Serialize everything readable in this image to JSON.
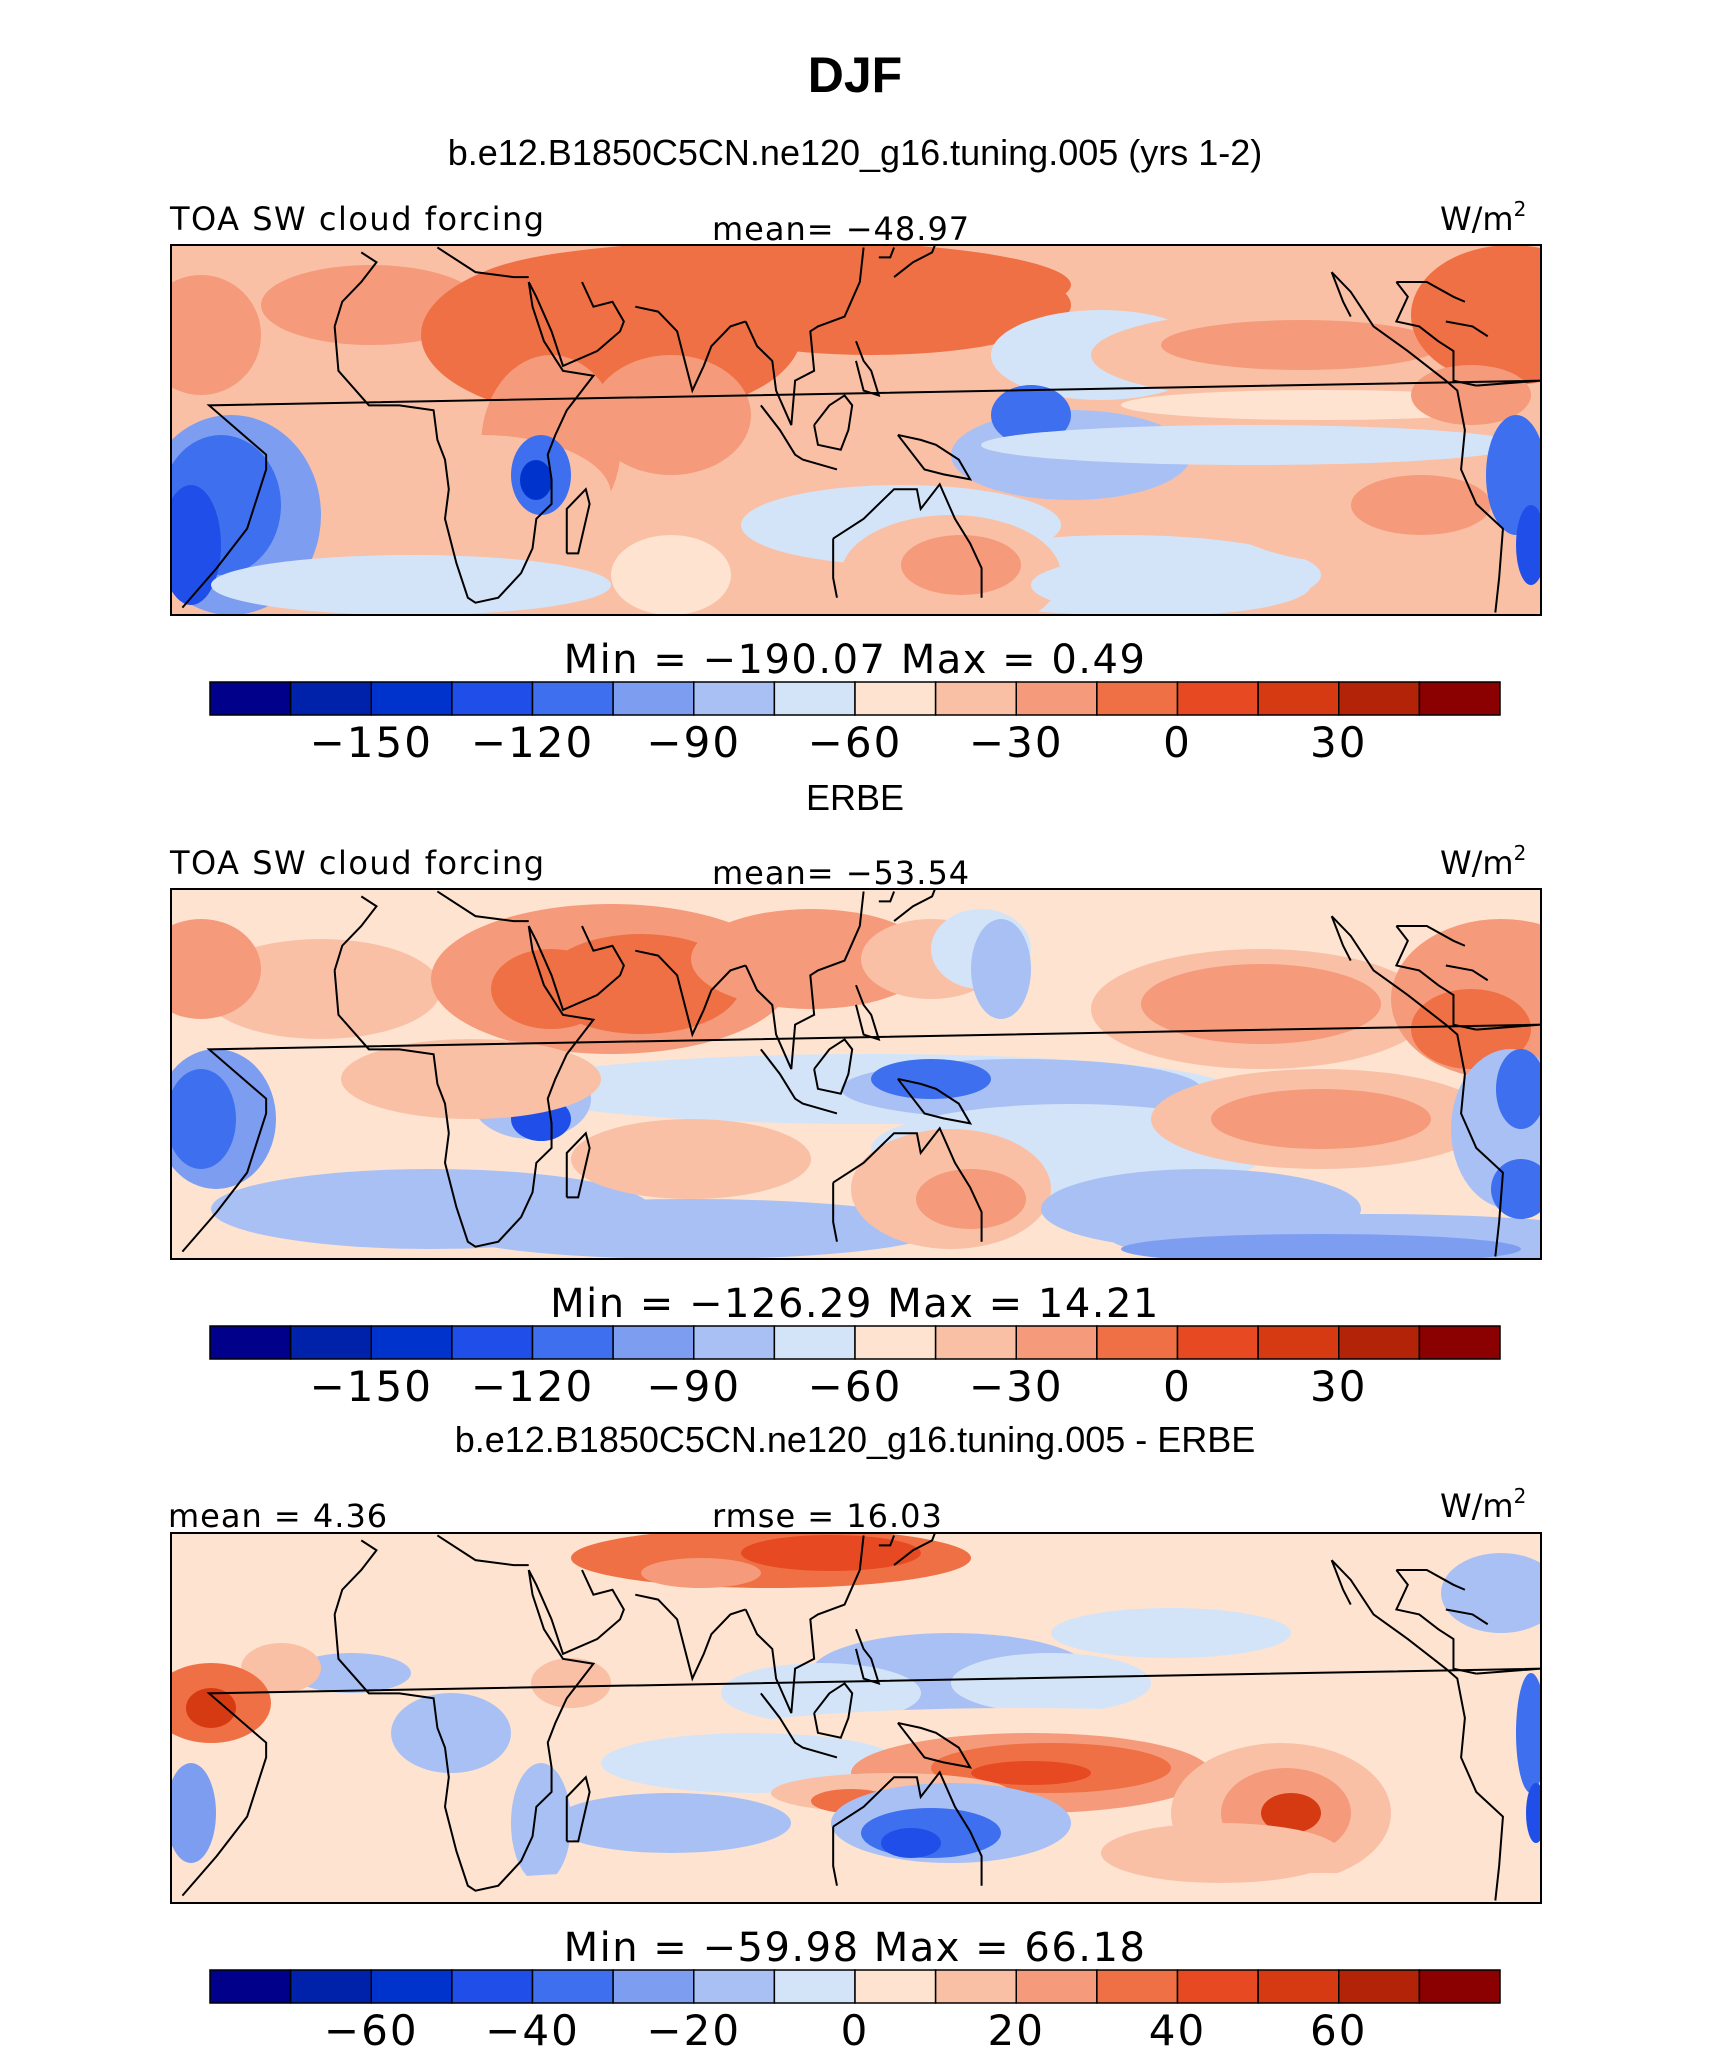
{
  "figure": {
    "title": "DJF",
    "top_model": "b.e12.B1850C5CN.ne120_g16.tuning.005 (yrs 1-2)",
    "obs": "ERBE",
    "diff_title": "b.e12.B1850C5CN.ne120_g16.tuning.005 - ERBE"
  },
  "colors": {
    "abs_levels": [
      "#00008b",
      "#0022aa",
      "#0033cc",
      "#1f4fe8",
      "#3d6fee",
      "#7d9df1",
      "#a9c0f4",
      "#d4e4f8",
      "#fde3d0",
      "#f9c0a6",
      "#f59a7a",
      "#ef7044",
      "#e74a22",
      "#d63a12",
      "#b22308",
      "#8b0000"
    ],
    "diff_levels": [
      "#00008b",
      "#0022aa",
      "#0033cc",
      "#1f4fe8",
      "#3d6fee",
      "#7d9df1",
      "#a9c0f4",
      "#d4e4f8",
      "#fde3d0",
      "#f9c0a6",
      "#f59a7a",
      "#ef7044",
      "#e74a22",
      "#d63a12",
      "#b22308",
      "#8b0000"
    ]
  },
  "chart_data": [
    {
      "type": "heatmap",
      "title": "b.e12.B1850C5CN.ne120_g16.tuning.005 (yrs 1-2)",
      "variable": "TOA SW cloud forcing",
      "units": "W/m",
      "units_sup": "2",
      "stat_left": "",
      "stat_center": "mean=  −48.97",
      "minmax": "Min  =  −190.07  Max  =     0.49",
      "min": -190.07,
      "max": 0.49,
      "mean": -48.97,
      "colorbar_ticks": [
        "−150",
        "−120",
        "−90",
        "−60",
        "−30",
        "0",
        "30"
      ]
    },
    {
      "type": "heatmap",
      "title": "ERBE",
      "variable": "TOA SW cloud forcing",
      "units": "W/m",
      "units_sup": "2",
      "stat_left": "",
      "stat_center": "mean=  −53.54",
      "minmax": "Min  =  −126.29  Max  =    14.21",
      "min": -126.29,
      "max": 14.21,
      "mean": -53.54,
      "colorbar_ticks": [
        "−150",
        "−120",
        "−90",
        "−60",
        "−30",
        "0",
        "30"
      ]
    },
    {
      "type": "heatmap",
      "title": "b.e12.B1850C5CN.ne120_g16.tuning.005 - ERBE",
      "variable": "",
      "units": "W/m",
      "units_sup": "2",
      "stat_left": "mean  =    4.36",
      "stat_center": "rmse  =   16.03",
      "minmax": "Min  =  −59.98  Max  =    66.18",
      "min": -59.98,
      "max": 66.18,
      "mean": 4.36,
      "rmse": 16.03,
      "colorbar_ticks": [
        "−60",
        "−40",
        "−20",
        "0",
        "20",
        "40",
        "60"
      ]
    }
  ]
}
